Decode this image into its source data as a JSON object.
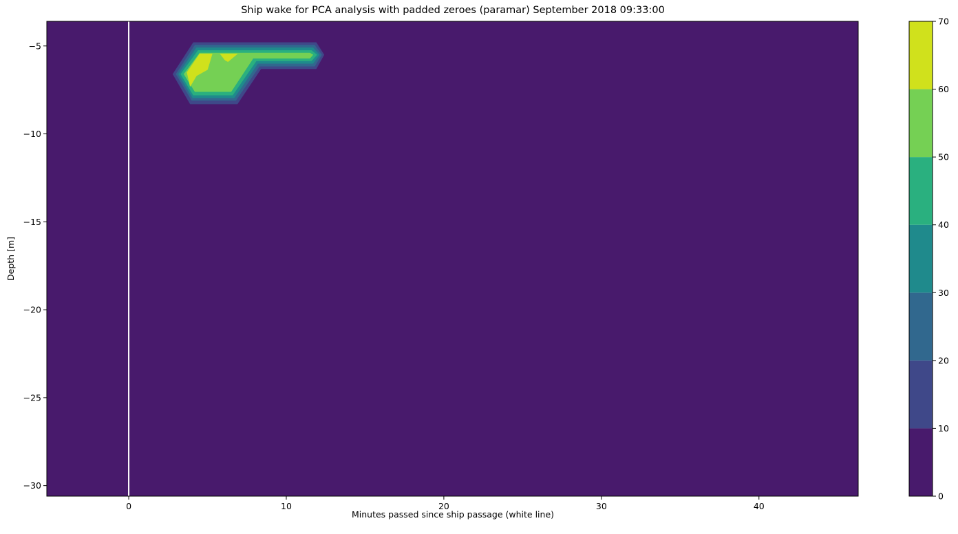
{
  "chart_data": {
    "type": "contourf",
    "title": "Ship wake for PCA analysis with padded zeroes (paramar) September 2018 09:33:00",
    "xlabel": "Minutes passed since ship passage (white line)",
    "ylabel": "Depth [m]",
    "xlim": [
      -5.2,
      46.3
    ],
    "ylim": [
      -30.6,
      -3.6
    ],
    "x_ticks": [
      0,
      10,
      20,
      30,
      40
    ],
    "x_tick_labels": [
      "0",
      "10",
      "20",
      "30",
      "40"
    ],
    "y_ticks": [
      -5,
      -10,
      -15,
      -20,
      -25,
      -30
    ],
    "y_tick_labels": [
      "−5",
      "−10",
      "−15",
      "−20",
      "−25",
      "−30"
    ],
    "background_level_color": "#481a6c",
    "ship_passage_line": {
      "x": 0,
      "color": "#ffffff"
    },
    "levels": [
      0,
      10,
      20,
      30,
      40,
      50,
      60,
      70
    ],
    "colorbar": {
      "ticks": [
        0,
        10,
        20,
        30,
        40,
        50,
        60,
        70
      ],
      "tick_labels": [
        "0",
        "10",
        "20",
        "30",
        "40",
        "50",
        "60",
        "70"
      ],
      "colors": [
        "#481a6c",
        "#3f4889",
        "#31688e",
        "#1f8a8c",
        "#2ab07f",
        "#75d054",
        "#d0e11c"
      ]
    },
    "contour_regions": [
      {
        "level_min": 10,
        "level_max": 20,
        "color": "#3f4889",
        "points": [
          [
            4.1,
            -4.8
          ],
          [
            11.9,
            -4.8
          ],
          [
            12.4,
            -5.5
          ],
          [
            11.9,
            -6.3
          ],
          [
            8.4,
            -6.3
          ],
          [
            6.9,
            -8.3
          ],
          [
            3.9,
            -8.3
          ],
          [
            2.8,
            -6.6
          ]
        ]
      },
      {
        "level_min": 20,
        "level_max": 30,
        "color": "#31688e",
        "points": [
          [
            4.2,
            -4.95
          ],
          [
            11.8,
            -4.95
          ],
          [
            12.25,
            -5.5
          ],
          [
            11.8,
            -6.15
          ],
          [
            8.3,
            -6.15
          ],
          [
            6.8,
            -8.1
          ],
          [
            4.0,
            -8.1
          ],
          [
            3.0,
            -6.6
          ]
        ]
      },
      {
        "level_min": 30,
        "level_max": 40,
        "color": "#1f8a8c",
        "points": [
          [
            4.3,
            -5.1
          ],
          [
            11.7,
            -5.1
          ],
          [
            12.1,
            -5.5
          ],
          [
            11.7,
            -6.0
          ],
          [
            8.2,
            -6.0
          ],
          [
            6.7,
            -7.95
          ],
          [
            4.05,
            -7.95
          ],
          [
            3.15,
            -6.6
          ]
        ]
      },
      {
        "level_min": 40,
        "level_max": 50,
        "color": "#2ab07f",
        "points": [
          [
            4.4,
            -5.25
          ],
          [
            11.6,
            -5.25
          ],
          [
            11.95,
            -5.5
          ],
          [
            11.6,
            -5.85
          ],
          [
            8.1,
            -5.85
          ],
          [
            6.6,
            -7.8
          ],
          [
            4.1,
            -7.8
          ],
          [
            3.3,
            -6.6
          ]
        ]
      },
      {
        "level_min": 50,
        "level_max": 60,
        "color": "#75d054",
        "points": [
          [
            4.5,
            -5.4
          ],
          [
            11.5,
            -5.4
          ],
          [
            11.7,
            -5.5
          ],
          [
            11.5,
            -5.7
          ],
          [
            7.9,
            -5.7
          ],
          [
            6.5,
            -7.6
          ],
          [
            4.2,
            -7.6
          ],
          [
            3.5,
            -6.6
          ]
        ]
      },
      {
        "level_min": 60,
        "level_max": 70,
        "color": "#d0e11c",
        "points": [
          [
            4.5,
            -5.45
          ],
          [
            5.3,
            -5.45
          ],
          [
            5.0,
            -6.35
          ],
          [
            4.3,
            -6.7
          ],
          [
            3.9,
            -7.3
          ],
          [
            3.7,
            -6.5
          ]
        ]
      },
      {
        "level_min": 60,
        "level_max": 70,
        "color": "#d0e11c",
        "points": [
          [
            5.8,
            -5.45
          ],
          [
            6.9,
            -5.45
          ],
          [
            6.3,
            -5.9
          ],
          [
            6.1,
            -5.8
          ]
        ]
      }
    ]
  }
}
